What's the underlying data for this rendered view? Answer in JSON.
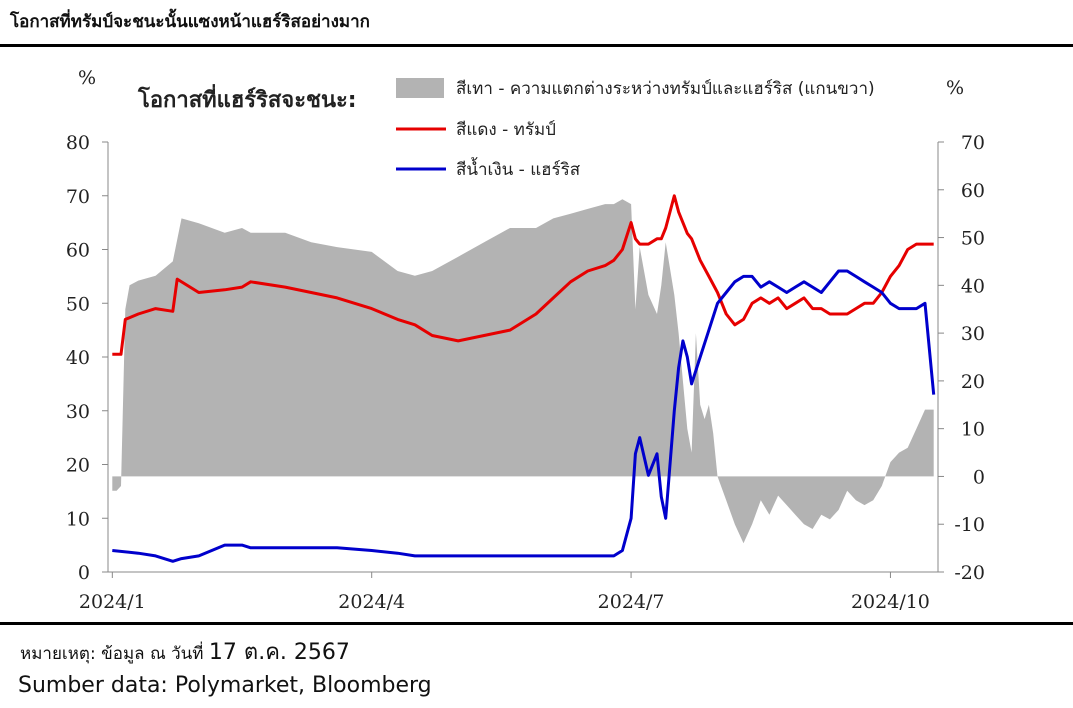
{
  "header": {
    "title": "โอกาสที่ทรัมป์จะชนะนั้นแซงหน้าแฮร์ริสอย่างมาก"
  },
  "footer": {
    "note_prefix": "หมายเหตุ: ข้อมูล ณ วันที่ ",
    "note_date": "17 ต.ค. 2567",
    "source": "Sumber data: Polymarket, Bloomberg"
  },
  "chart_data": {
    "type": "line",
    "title": "โอกาสที่แฮร์ริสจะชนะ:",
    "y_left_unit": "%",
    "y_right_unit": "%",
    "y_left_range": [
      0,
      80
    ],
    "y_right_range": [
      -20,
      70
    ],
    "y_left_ticks": [
      "0",
      "10",
      "20",
      "30",
      "40",
      "50",
      "60",
      "70",
      "80"
    ],
    "y_right_ticks": [
      "-20",
      "-10",
      "0",
      "10",
      "20",
      "30",
      "40",
      "50",
      "60",
      "70"
    ],
    "x_tick_labels": [
      "2024/1",
      "2024/4",
      "2024/7",
      "2024/10"
    ],
    "x_tick_months": [
      0,
      3,
      6,
      9
    ],
    "x_range_months": [
      -0.05,
      9.55
    ],
    "grid": false,
    "legend_position": "top",
    "colors": {
      "gray": "#b3b3b3",
      "red": "#e60000",
      "blue": "#0000cc"
    },
    "series": [
      {
        "name": "สีเทา - ความแตกต่างระหว่างทรัมป์และแฮร์ริส (แกนขวา)",
        "kind": "area",
        "axis": "right",
        "x": [
          0.0,
          0.05,
          0.1,
          0.15,
          0.2,
          0.3,
          0.5,
          0.7,
          0.8,
          1.0,
          1.3,
          1.5,
          1.6,
          2.0,
          2.3,
          2.6,
          3.0,
          3.3,
          3.5,
          3.7,
          4.0,
          4.3,
          4.6,
          4.9,
          5.1,
          5.3,
          5.5,
          5.7,
          5.8,
          5.9,
          6.0,
          6.05,
          6.1,
          6.2,
          6.3,
          6.35,
          6.4,
          6.5,
          6.55,
          6.6,
          6.65,
          6.7,
          6.75,
          6.8,
          6.85,
          6.9,
          6.95,
          7.0,
          7.1,
          7.2,
          7.3,
          7.4,
          7.5,
          7.6,
          7.7,
          7.8,
          7.9,
          8.0,
          8.1,
          8.2,
          8.3,
          8.4,
          8.5,
          8.6,
          8.7,
          8.8,
          8.9,
          9.0,
          9.1,
          9.2,
          9.3,
          9.4,
          9.5
        ],
        "values": [
          -3,
          -3,
          -2,
          35,
          40,
          41,
          42,
          45,
          54,
          53,
          51,
          52,
          51,
          51,
          49,
          48,
          47,
          43,
          42,
          43,
          46,
          49,
          52,
          52,
          54,
          55,
          56,
          57,
          57,
          58,
          57,
          35,
          48,
          38,
          34,
          40,
          49,
          38,
          30,
          20,
          10,
          5,
          30,
          15,
          12,
          15,
          9,
          0,
          -5,
          -10,
          -14,
          -10,
          -5,
          -8,
          -4,
          -6,
          -8,
          -10,
          -11,
          -8,
          -9,
          -7,
          -3,
          -5,
          -6,
          -5,
          -2,
          3,
          5,
          6,
          10,
          14,
          14
        ]
      },
      {
        "name": "สีแดง - ทรัมป์",
        "kind": "line",
        "axis": "left",
        "x": [
          0.0,
          0.1,
          0.15,
          0.3,
          0.5,
          0.7,
          0.75,
          1.0,
          1.3,
          1.5,
          1.6,
          2.0,
          2.3,
          2.6,
          3.0,
          3.3,
          3.5,
          3.7,
          4.0,
          4.3,
          4.6,
          4.9,
          5.1,
          5.3,
          5.5,
          5.7,
          5.8,
          5.9,
          6.0,
          6.05,
          6.1,
          6.2,
          6.3,
          6.35,
          6.4,
          6.5,
          6.55,
          6.6,
          6.65,
          6.7,
          6.8,
          6.9,
          7.0,
          7.1,
          7.2,
          7.3,
          7.4,
          7.5,
          7.6,
          7.7,
          7.8,
          7.9,
          8.0,
          8.1,
          8.2,
          8.3,
          8.4,
          8.5,
          8.6,
          8.7,
          8.8,
          8.9,
          9.0,
          9.1,
          9.2,
          9.3,
          9.4,
          9.5
        ],
        "values": [
          40.5,
          40.5,
          47,
          48,
          49,
          48.5,
          54.5,
          52,
          52.5,
          53,
          54,
          53,
          52,
          51,
          49,
          47,
          46,
          44,
          43,
          44,
          45,
          48,
          51,
          54,
          56,
          57,
          58,
          60,
          65,
          62,
          61,
          61,
          62,
          62,
          64,
          70,
          67,
          65,
          63,
          62,
          58,
          55,
          52,
          48,
          46,
          47,
          50,
          51,
          50,
          51,
          49,
          50,
          51,
          49,
          49,
          48,
          48,
          48,
          49,
          50,
          50,
          52,
          55,
          57,
          60,
          61,
          61,
          61
        ]
      },
      {
        "name": "สีน้ำเงิน - แฮร์ริส",
        "kind": "line",
        "axis": "left",
        "x": [
          0.0,
          0.3,
          0.5,
          0.7,
          0.8,
          1.0,
          1.3,
          1.5,
          1.6,
          2.0,
          2.3,
          2.6,
          3.0,
          3.3,
          3.5,
          3.7,
          4.0,
          4.3,
          4.6,
          4.9,
          5.1,
          5.3,
          5.5,
          5.7,
          5.8,
          5.9,
          6.0,
          6.05,
          6.1,
          6.2,
          6.3,
          6.35,
          6.4,
          6.5,
          6.55,
          6.6,
          6.65,
          6.7,
          6.8,
          6.9,
          7.0,
          7.1,
          7.2,
          7.3,
          7.4,
          7.5,
          7.6,
          7.7,
          7.8,
          7.9,
          8.0,
          8.1,
          8.2,
          8.3,
          8.4,
          8.5,
          8.6,
          8.7,
          8.8,
          8.9,
          9.0,
          9.1,
          9.2,
          9.3,
          9.4,
          9.5
        ],
        "values": [
          4,
          3.5,
          3,
          2,
          2.5,
          3,
          5,
          5,
          4.5,
          4.5,
          4.5,
          4.5,
          4,
          3.5,
          3,
          3,
          3,
          3,
          3,
          3,
          3,
          3,
          3,
          3,
          3,
          4,
          10,
          22,
          25,
          18,
          22,
          14,
          10,
          30,
          38,
          43,
          40,
          35,
          40,
          45,
          50,
          52,
          54,
          55,
          55,
          53,
          54,
          53,
          52,
          53,
          54,
          53,
          52,
          54,
          56,
          56,
          55,
          54,
          53,
          52,
          50,
          49,
          49,
          49,
          50,
          33
        ]
      }
    ]
  }
}
